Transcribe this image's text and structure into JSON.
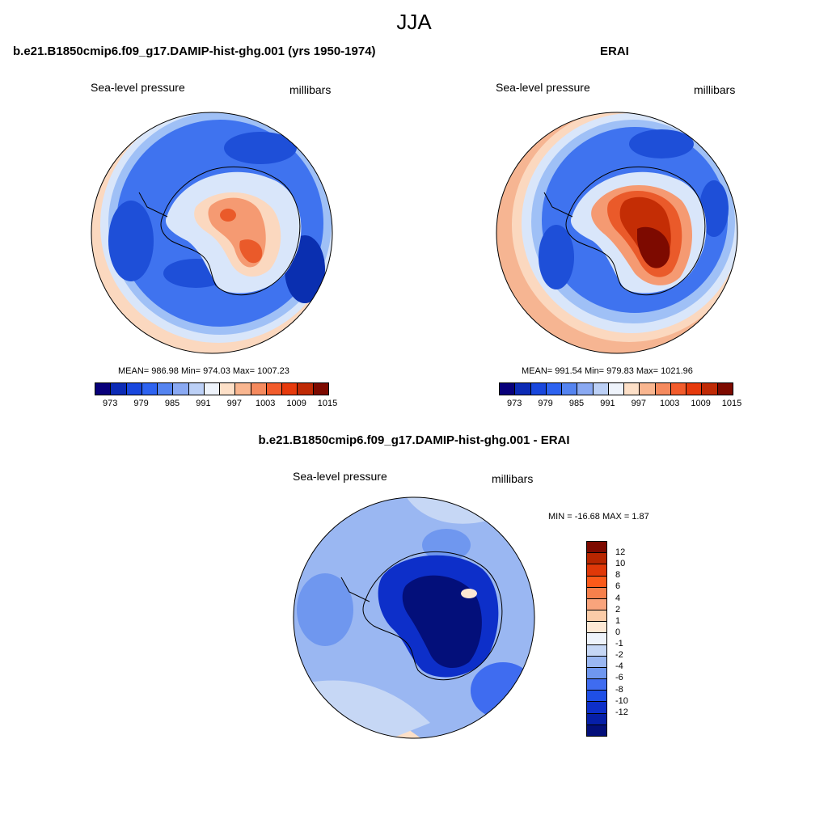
{
  "page": {
    "title": "JJA"
  },
  "panel_model": {
    "case_title": "b.e21.B1850cmip6.f09_g17.DAMIP-hist-ghg.001 (yrs 1950-1974)",
    "left_label": "Sea-level pressure",
    "right_label": "millibars",
    "stats": "MEAN= 986.98  Min= 974.03  Max= 1007.23"
  },
  "panel_obs": {
    "case_title": "ERAI",
    "left_label": "Sea-level pressure",
    "right_label": "millibars",
    "stats": "MEAN= 991.54  Min= 979.83  Max= 1021.96"
  },
  "panel_diff": {
    "case_title": "b.e21.B1850cmip6.f09_g17.DAMIP-hist-ghg.001 - ERAI",
    "left_label": "Sea-level pressure",
    "right_label": "millibars",
    "stats": "MIN = -16.68 MAX =   1.87"
  },
  "colorbar_abs": {
    "colors": [
      "#08007a",
      "#0c2bb5",
      "#1947dd",
      "#2e63f0",
      "#5584f0",
      "#8aa9f2",
      "#bcd0f6",
      "#eef3fb",
      "#fde0c8",
      "#f9b690",
      "#f58a5e",
      "#f25c2c",
      "#e63a0c",
      "#bf2a05",
      "#7d0a00"
    ],
    "labels": [
      "973",
      "979",
      "985",
      "991",
      "997",
      "1003",
      "1009",
      "1015"
    ]
  },
  "colorbar_diff": {
    "colors": [
      "#7d0a00",
      "#b82600",
      "#e03808",
      "#fb5a1a",
      "#f6804c",
      "#f9a47c",
      "#fbcca8",
      "#fde8d4",
      "#eef3fb",
      "#c6d7f5",
      "#9ab7f2",
      "#6f97ef",
      "#3f6cf0",
      "#1f4fe6",
      "#0d2fc9",
      "#061fa8",
      "#030f7a"
    ],
    "labels": [
      "12",
      "10",
      "8",
      "6",
      "4",
      "2",
      "1",
      "0",
      "-1",
      "-2",
      "-4",
      "-6",
      "-8",
      "-10",
      "-12"
    ]
  },
  "map_colors": {
    "ocean_deep": "#1e4fd8",
    "ocean_mid": "#3f73ef",
    "ocean_light": "#9fc0f6",
    "ocean_pale": "#d9e6fa",
    "rim_warm": "#fbd8bf",
    "rim_warmer": "#f6b592",
    "high_1": "#f59a72",
    "high_2": "#ea5a2a",
    "high_3": "#c42d05",
    "high_4": "#7d0a00",
    "diff_deep": "#030f7a",
    "diff_mid": "#0d2fc9",
    "diff_light": "#6f97ef",
    "diff_pale": "#c6d7f5",
    "diff_warm": "#fde0c8"
  }
}
